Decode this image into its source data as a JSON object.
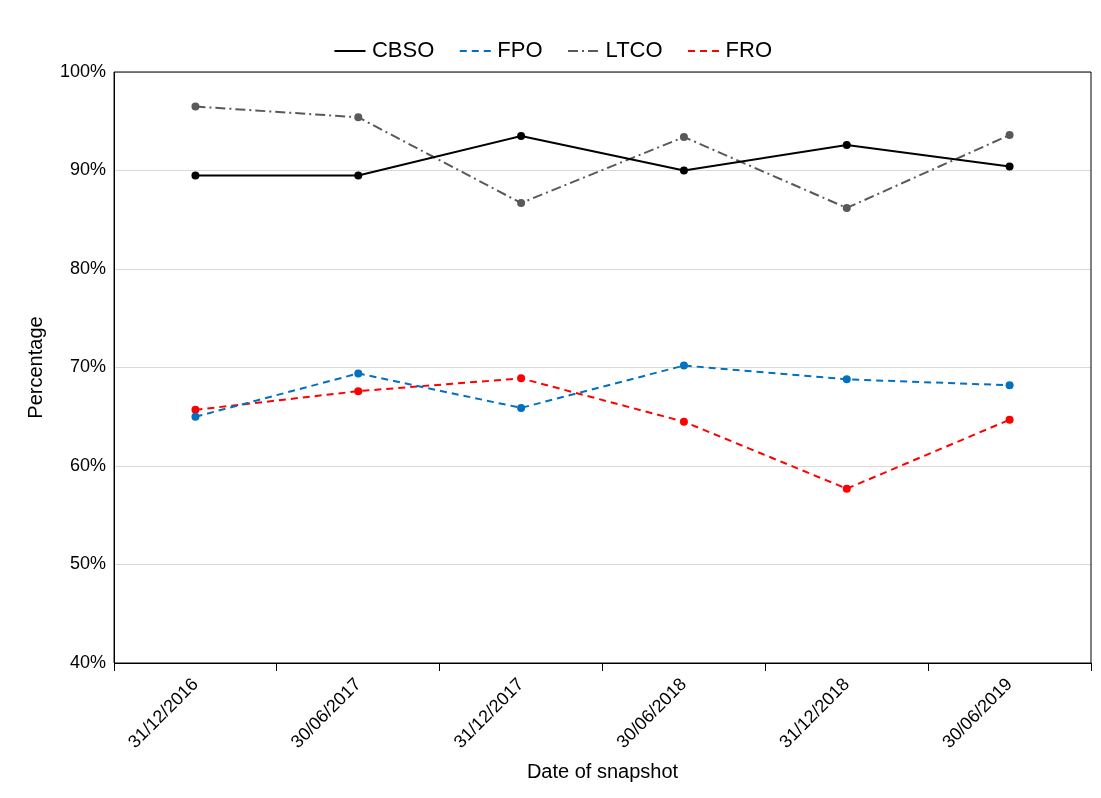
{
  "chart_data": {
    "type": "line",
    "xlabel": "Date of snapshot",
    "ylabel": "Percentage",
    "categories": [
      "31/12/2016",
      "30/06/2017",
      "31/12/2017",
      "30/06/2018",
      "31/12/2018",
      "30/06/2019"
    ],
    "series": [
      {
        "name": "CBSO",
        "color": "#000000",
        "line_style": "solid",
        "values": [
          89.5,
          89.5,
          93.5,
          90.0,
          92.6,
          90.4
        ]
      },
      {
        "name": "FPO",
        "color": "#0070c0",
        "line_style": "dashed",
        "values": [
          65.0,
          69.4,
          65.9,
          70.2,
          68.8,
          68.2
        ]
      },
      {
        "name": "LTCO",
        "color": "#595959",
        "line_style": "dashdot",
        "values": [
          96.5,
          95.4,
          86.7,
          93.4,
          86.2,
          93.6
        ]
      },
      {
        "name": "FRO",
        "color": "#ff0000",
        "line_style": "dashed",
        "values": [
          65.7,
          67.6,
          68.9,
          64.5,
          57.7,
          64.7
        ]
      }
    ],
    "ylim": [
      40,
      100
    ],
    "yticks": [
      {
        "value": 40,
        "label": "40%"
      },
      {
        "value": 50,
        "label": "50%"
      },
      {
        "value": 60,
        "label": "60%"
      },
      {
        "value": 70,
        "label": "70%"
      },
      {
        "value": 80,
        "label": "80%"
      },
      {
        "value": 90,
        "label": "90%"
      },
      {
        "value": 100,
        "label": "100%"
      }
    ],
    "grid": "y",
    "legend": "top",
    "marker": "circle"
  }
}
